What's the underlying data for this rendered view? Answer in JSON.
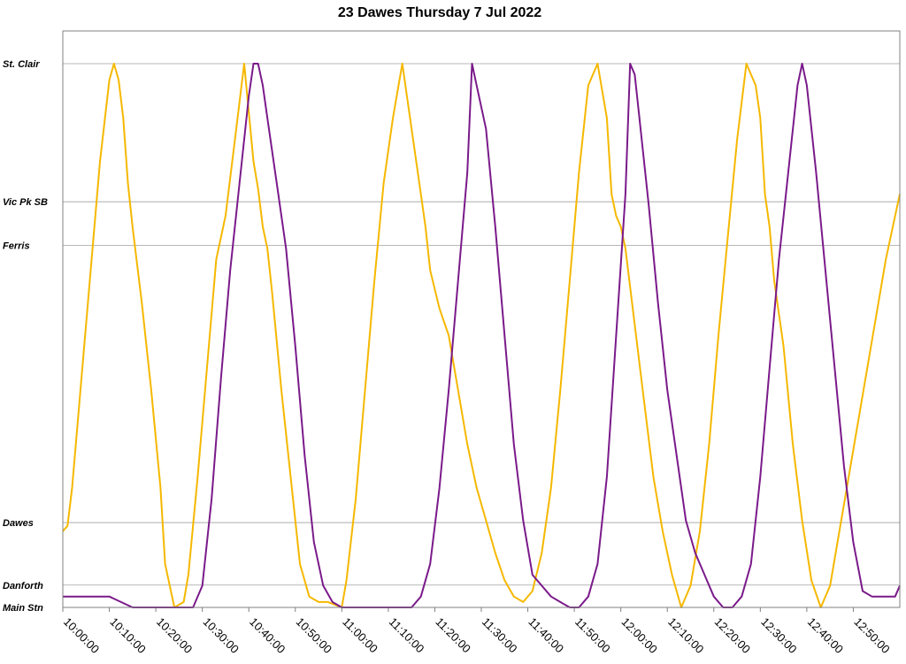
{
  "chart_data": {
    "type": "line",
    "title": "23 Dawes Thursday 7 Jul 2022",
    "xlabel": "",
    "ylabel": "",
    "x_ticks": [
      "10:00:00",
      "10:10:00",
      "10:20:00",
      "10:30:00",
      "10:40:00",
      "10:50:00",
      "11:00:00",
      "11:10:00",
      "11:20:00",
      "11:30:00",
      "11:40:00",
      "11:50:00",
      "12:00:00",
      "12:10:00",
      "12:20:00",
      "12:30:00",
      "12:40:00",
      "12:50:00"
    ],
    "xlim": [
      "10:00:00",
      "13:00:00"
    ],
    "y_stops": [
      {
        "label": "St. Clair",
        "value": 100
      },
      {
        "label": "Vic Pk SB",
        "value": 74.6
      },
      {
        "label": "Ferris",
        "value": 66.6
      },
      {
        "label": "Dawes",
        "value": 15.6
      },
      {
        "label": "Danforth",
        "value": 4.1
      },
      {
        "label": "Main Stn",
        "value": 0
      }
    ],
    "ylim": [
      0,
      100
    ],
    "grid": "horizontal at stops",
    "series": [
      {
        "color": "#F5B800",
        "x": [
          "10:00:00",
          "10:01:00",
          "10:02:00",
          "10:04:00",
          "10:06:00",
          "10:08:00",
          "10:10:00",
          "10:11:00",
          "10:12:00",
          "10:13:00",
          "10:14:00",
          "10:15:00",
          "10:17:00",
          "10:19:00",
          "10:21:00",
          "10:22:00",
          "10:24:00",
          "10:26:00",
          "10:27:00",
          "10:29:00",
          "10:31:00",
          "10:33:00",
          "10:35:00",
          "10:37:00",
          "10:39:00",
          "10:41:00",
          "10:42:00",
          "10:43:00",
          "10:44:00",
          "10:45:00",
          "10:47:00",
          "10:49:00",
          "10:51:00",
          "10:53:00",
          "10:55:00",
          "10:57:00",
          "11:00:00",
          "11:01:00",
          "11:03:00",
          "11:05:00",
          "11:07:00",
          "11:09:00",
          "11:11:00",
          "11:13:00",
          "11:15:00",
          "11:17:00",
          "11:18:00",
          "11:19:00",
          "11:21:00",
          "11:23:00",
          "11:25:00",
          "11:27:00",
          "11:29:00",
          "11:31:00",
          "11:33:00",
          "11:35:00",
          "11:37:00",
          "11:39:00",
          "11:41:00",
          "11:43:00",
          "11:45:00",
          "11:47:00",
          "11:49:00",
          "11:51:00",
          "11:53:00",
          "11:55:00",
          "11:57:00",
          "11:58:00",
          "11:59:00",
          "12:00:00",
          "12:01:00",
          "12:03:00",
          "12:05:00",
          "12:07:00",
          "12:09:00",
          "12:11:00",
          "12:13:00",
          "12:15:00",
          "12:17:00",
          "12:19:00",
          "12:21:00",
          "12:23:00",
          "12:25:00",
          "12:27:00",
          "12:29:00",
          "12:30:00",
          "12:31:00",
          "12:32:00",
          "12:33:00",
          "12:35:00",
          "12:37:00",
          "12:39:00",
          "12:41:00",
          "12:43:00",
          "12:45:00",
          "12:47:00",
          "12:49:00",
          "12:51:00",
          "12:53:00",
          "12:55:00",
          "12:57:00",
          "12:59:00",
          "13:00:00"
        ],
        "y": [
          14,
          15,
          22,
          42,
          62,
          82,
          97,
          100,
          97,
          90,
          78,
          70,
          56,
          40,
          22,
          8,
          0,
          1,
          6,
          24,
          44,
          64,
          72,
          86,
          100,
          82,
          77,
          70,
          66,
          58,
          40,
          24,
          8,
          2,
          1,
          1,
          0,
          5,
          20,
          40,
          60,
          78,
          90,
          100,
          88,
          76,
          70,
          62,
          55,
          50,
          40,
          30,
          22,
          16,
          10,
          5,
          2,
          1,
          3,
          10,
          22,
          40,
          60,
          80,
          96,
          100,
          90,
          76,
          72,
          70,
          66,
          52,
          38,
          24,
          14,
          6,
          0,
          4,
          14,
          30,
          50,
          68,
          86,
          100,
          96,
          90,
          76,
          70,
          60,
          48,
          30,
          16,
          5,
          0,
          4,
          14,
          24,
          34,
          44,
          54,
          64,
          72,
          76
        ],
        "name": ""
      },
      {
        "color": "#7A1A8A",
        "x": [
          "10:00:00",
          "10:05:00",
          "10:10:00",
          "10:15:00",
          "10:20:00",
          "10:25:00",
          "10:28:00",
          "10:30:00",
          "10:32:00",
          "10:34:00",
          "10:36:00",
          "10:38:00",
          "10:40:00",
          "10:41:00",
          "10:42:00",
          "10:43:00",
          "10:44:00",
          "10:46:00",
          "10:48:00",
          "10:50:00",
          "10:52:00",
          "10:54:00",
          "10:56:00",
          "10:58:00",
          "11:00:00",
          "11:05:00",
          "11:10:00",
          "11:15:00",
          "11:17:00",
          "11:19:00",
          "11:21:00",
          "11:23:00",
          "11:25:00",
          "11:27:00",
          "11:28:00",
          "11:29:00",
          "11:31:00",
          "11:33:00",
          "11:35:00",
          "11:37:00",
          "11:39:00",
          "11:41:00",
          "11:43:00",
          "11:45:00",
          "11:47:00",
          "11:49:00",
          "11:51:00",
          "11:53:00",
          "11:55:00",
          "11:57:00",
          "11:59:00",
          "12:01:00",
          "12:02:00",
          "12:03:00",
          "12:04:00",
          "12:06:00",
          "12:08:00",
          "12:10:00",
          "12:12:00",
          "12:14:00",
          "12:16:00",
          "12:18:00",
          "12:20:00",
          "12:22:00",
          "12:24:00",
          "12:26:00",
          "12:28:00",
          "12:30:00",
          "12:32:00",
          "12:34:00",
          "12:36:00",
          "12:38:00",
          "12:39:00",
          "12:40:00",
          "12:42:00",
          "12:44:00",
          "12:46:00",
          "12:48:00",
          "12:50:00",
          "12:52:00",
          "12:54:00",
          "12:56:00",
          "12:58:00",
          "12:59:00",
          "13:00:00"
        ],
        "y": [
          2,
          2,
          2,
          0,
          0,
          0,
          0,
          4,
          20,
          42,
          62,
          78,
          94,
          100,
          100,
          96,
          90,
          78,
          66,
          48,
          28,
          12,
          4,
          1,
          0,
          0,
          0,
          0,
          2,
          8,
          22,
          40,
          60,
          80,
          100,
          96,
          88,
          70,
          50,
          30,
          16,
          6,
          4,
          2,
          1,
          0,
          0,
          2,
          8,
          24,
          50,
          76,
          100,
          98,
          90,
          74,
          56,
          40,
          28,
          16,
          10,
          6,
          2,
          0,
          0,
          2,
          8,
          24,
          44,
          64,
          80,
          96,
          100,
          96,
          80,
          62,
          44,
          26,
          12,
          3,
          2,
          2,
          2,
          2,
          4
        ],
        "name": ""
      }
    ]
  }
}
